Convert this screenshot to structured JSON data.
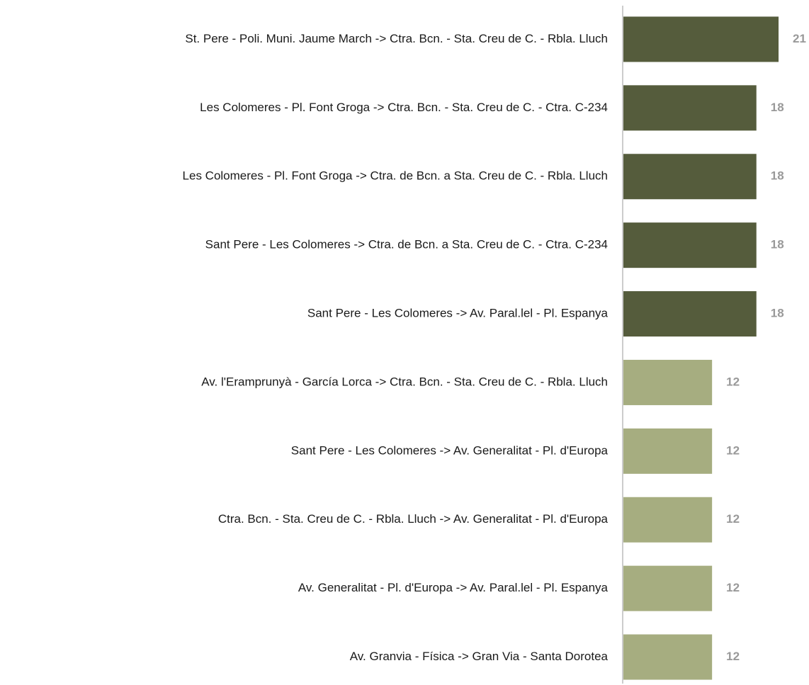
{
  "chart_data": {
    "type": "hbar",
    "categories": [
      "St. Pere - Poli. Muni. Jaume March -> Ctra. Bcn. - Sta. Creu de C. - Rbla. Lluch",
      "Les Colomeres - Pl. Font Groga -> Ctra. Bcn. - Sta. Creu de C. - Ctra. C-234",
      "Les Colomeres - Pl. Font Groga -> Ctra. de Bcn. a Sta. Creu de C. - Rbla. Lluch",
      "Sant Pere - Les Colomeres -> Ctra. de Bcn. a Sta. Creu de C. - Ctra. C-234",
      "Sant Pere - Les Colomeres -> Av. Paral.lel - Pl. Espanya",
      "Av. l'Eramprunyà - García Lorca -> Ctra. Bcn. - Sta. Creu de C. - Rbla. Lluch",
      "Sant Pere - Les Colomeres -> Av. Generalitat - Pl. d'Europa",
      "Ctra. Bcn. - Sta. Creu de C. - Rbla. Lluch -> Av. Generalitat - Pl. d'Europa",
      "Av. Generalitat - Pl. d'Europa -> Av. Paral.lel - Pl. Espanya",
      "Av. Granvia - Física -> Gran Via - Santa Dorotea"
    ],
    "values": [
      21,
      18,
      18,
      18,
      18,
      12,
      12,
      12,
      12,
      12
    ],
    "colors": [
      "#555c3c",
      "#555c3c",
      "#555c3c",
      "#555c3c",
      "#555c3c",
      "#a6ad80",
      "#a6ad80",
      "#a6ad80",
      "#a6ad80",
      "#a6ad80"
    ]
  }
}
